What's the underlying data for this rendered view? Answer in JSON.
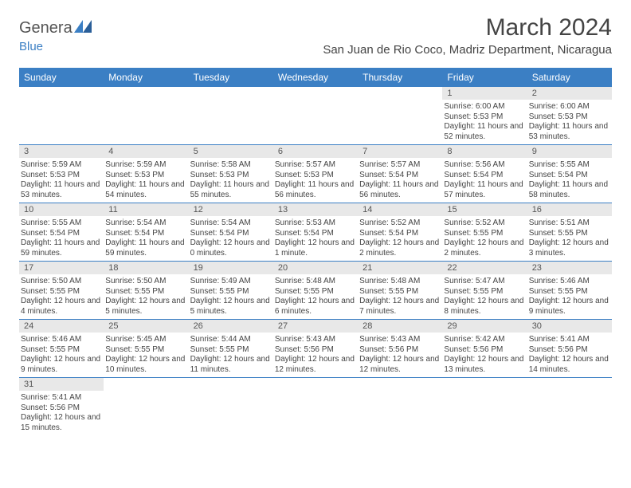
{
  "logo": {
    "text1": "Genera",
    "text2": "Blue"
  },
  "title": "March 2024",
  "subtitle": "San Juan de Rio Coco, Madriz Department, Nicaragua",
  "colors": {
    "header_bg": "#3b7fc4",
    "header_fg": "#ffffff",
    "daynum_bg": "#e8e8e8",
    "row_divider": "#3b7fc4",
    "text": "#444444"
  },
  "weekdays": [
    "Sunday",
    "Monday",
    "Tuesday",
    "Wednesday",
    "Thursday",
    "Friday",
    "Saturday"
  ],
  "weeks": [
    [
      null,
      null,
      null,
      null,
      null,
      {
        "n": "1",
        "sr": "Sunrise: 6:00 AM",
        "ss": "Sunset: 5:53 PM",
        "dl": "Daylight: 11 hours and 52 minutes."
      },
      {
        "n": "2",
        "sr": "Sunrise: 6:00 AM",
        "ss": "Sunset: 5:53 PM",
        "dl": "Daylight: 11 hours and 53 minutes."
      }
    ],
    [
      {
        "n": "3",
        "sr": "Sunrise: 5:59 AM",
        "ss": "Sunset: 5:53 PM",
        "dl": "Daylight: 11 hours and 53 minutes."
      },
      {
        "n": "4",
        "sr": "Sunrise: 5:59 AM",
        "ss": "Sunset: 5:53 PM",
        "dl": "Daylight: 11 hours and 54 minutes."
      },
      {
        "n": "5",
        "sr": "Sunrise: 5:58 AM",
        "ss": "Sunset: 5:53 PM",
        "dl": "Daylight: 11 hours and 55 minutes."
      },
      {
        "n": "6",
        "sr": "Sunrise: 5:57 AM",
        "ss": "Sunset: 5:53 PM",
        "dl": "Daylight: 11 hours and 56 minutes."
      },
      {
        "n": "7",
        "sr": "Sunrise: 5:57 AM",
        "ss": "Sunset: 5:54 PM",
        "dl": "Daylight: 11 hours and 56 minutes."
      },
      {
        "n": "8",
        "sr": "Sunrise: 5:56 AM",
        "ss": "Sunset: 5:54 PM",
        "dl": "Daylight: 11 hours and 57 minutes."
      },
      {
        "n": "9",
        "sr": "Sunrise: 5:55 AM",
        "ss": "Sunset: 5:54 PM",
        "dl": "Daylight: 11 hours and 58 minutes."
      }
    ],
    [
      {
        "n": "10",
        "sr": "Sunrise: 5:55 AM",
        "ss": "Sunset: 5:54 PM",
        "dl": "Daylight: 11 hours and 59 minutes."
      },
      {
        "n": "11",
        "sr": "Sunrise: 5:54 AM",
        "ss": "Sunset: 5:54 PM",
        "dl": "Daylight: 11 hours and 59 minutes."
      },
      {
        "n": "12",
        "sr": "Sunrise: 5:54 AM",
        "ss": "Sunset: 5:54 PM",
        "dl": "Daylight: 12 hours and 0 minutes."
      },
      {
        "n": "13",
        "sr": "Sunrise: 5:53 AM",
        "ss": "Sunset: 5:54 PM",
        "dl": "Daylight: 12 hours and 1 minute."
      },
      {
        "n": "14",
        "sr": "Sunrise: 5:52 AM",
        "ss": "Sunset: 5:54 PM",
        "dl": "Daylight: 12 hours and 2 minutes."
      },
      {
        "n": "15",
        "sr": "Sunrise: 5:52 AM",
        "ss": "Sunset: 5:55 PM",
        "dl": "Daylight: 12 hours and 2 minutes."
      },
      {
        "n": "16",
        "sr": "Sunrise: 5:51 AM",
        "ss": "Sunset: 5:55 PM",
        "dl": "Daylight: 12 hours and 3 minutes."
      }
    ],
    [
      {
        "n": "17",
        "sr": "Sunrise: 5:50 AM",
        "ss": "Sunset: 5:55 PM",
        "dl": "Daylight: 12 hours and 4 minutes."
      },
      {
        "n": "18",
        "sr": "Sunrise: 5:50 AM",
        "ss": "Sunset: 5:55 PM",
        "dl": "Daylight: 12 hours and 5 minutes."
      },
      {
        "n": "19",
        "sr": "Sunrise: 5:49 AM",
        "ss": "Sunset: 5:55 PM",
        "dl": "Daylight: 12 hours and 5 minutes."
      },
      {
        "n": "20",
        "sr": "Sunrise: 5:48 AM",
        "ss": "Sunset: 5:55 PM",
        "dl": "Daylight: 12 hours and 6 minutes."
      },
      {
        "n": "21",
        "sr": "Sunrise: 5:48 AM",
        "ss": "Sunset: 5:55 PM",
        "dl": "Daylight: 12 hours and 7 minutes."
      },
      {
        "n": "22",
        "sr": "Sunrise: 5:47 AM",
        "ss": "Sunset: 5:55 PM",
        "dl": "Daylight: 12 hours and 8 minutes."
      },
      {
        "n": "23",
        "sr": "Sunrise: 5:46 AM",
        "ss": "Sunset: 5:55 PM",
        "dl": "Daylight: 12 hours and 9 minutes."
      }
    ],
    [
      {
        "n": "24",
        "sr": "Sunrise: 5:46 AM",
        "ss": "Sunset: 5:55 PM",
        "dl": "Daylight: 12 hours and 9 minutes."
      },
      {
        "n": "25",
        "sr": "Sunrise: 5:45 AM",
        "ss": "Sunset: 5:55 PM",
        "dl": "Daylight: 12 hours and 10 minutes."
      },
      {
        "n": "26",
        "sr": "Sunrise: 5:44 AM",
        "ss": "Sunset: 5:55 PM",
        "dl": "Daylight: 12 hours and 11 minutes."
      },
      {
        "n": "27",
        "sr": "Sunrise: 5:43 AM",
        "ss": "Sunset: 5:56 PM",
        "dl": "Daylight: 12 hours and 12 minutes."
      },
      {
        "n": "28",
        "sr": "Sunrise: 5:43 AM",
        "ss": "Sunset: 5:56 PM",
        "dl": "Daylight: 12 hours and 12 minutes."
      },
      {
        "n": "29",
        "sr": "Sunrise: 5:42 AM",
        "ss": "Sunset: 5:56 PM",
        "dl": "Daylight: 12 hours and 13 minutes."
      },
      {
        "n": "30",
        "sr": "Sunrise: 5:41 AM",
        "ss": "Sunset: 5:56 PM",
        "dl": "Daylight: 12 hours and 14 minutes."
      }
    ],
    [
      {
        "n": "31",
        "sr": "Sunrise: 5:41 AM",
        "ss": "Sunset: 5:56 PM",
        "dl": "Daylight: 12 hours and 15 minutes."
      },
      null,
      null,
      null,
      null,
      null,
      null
    ]
  ]
}
